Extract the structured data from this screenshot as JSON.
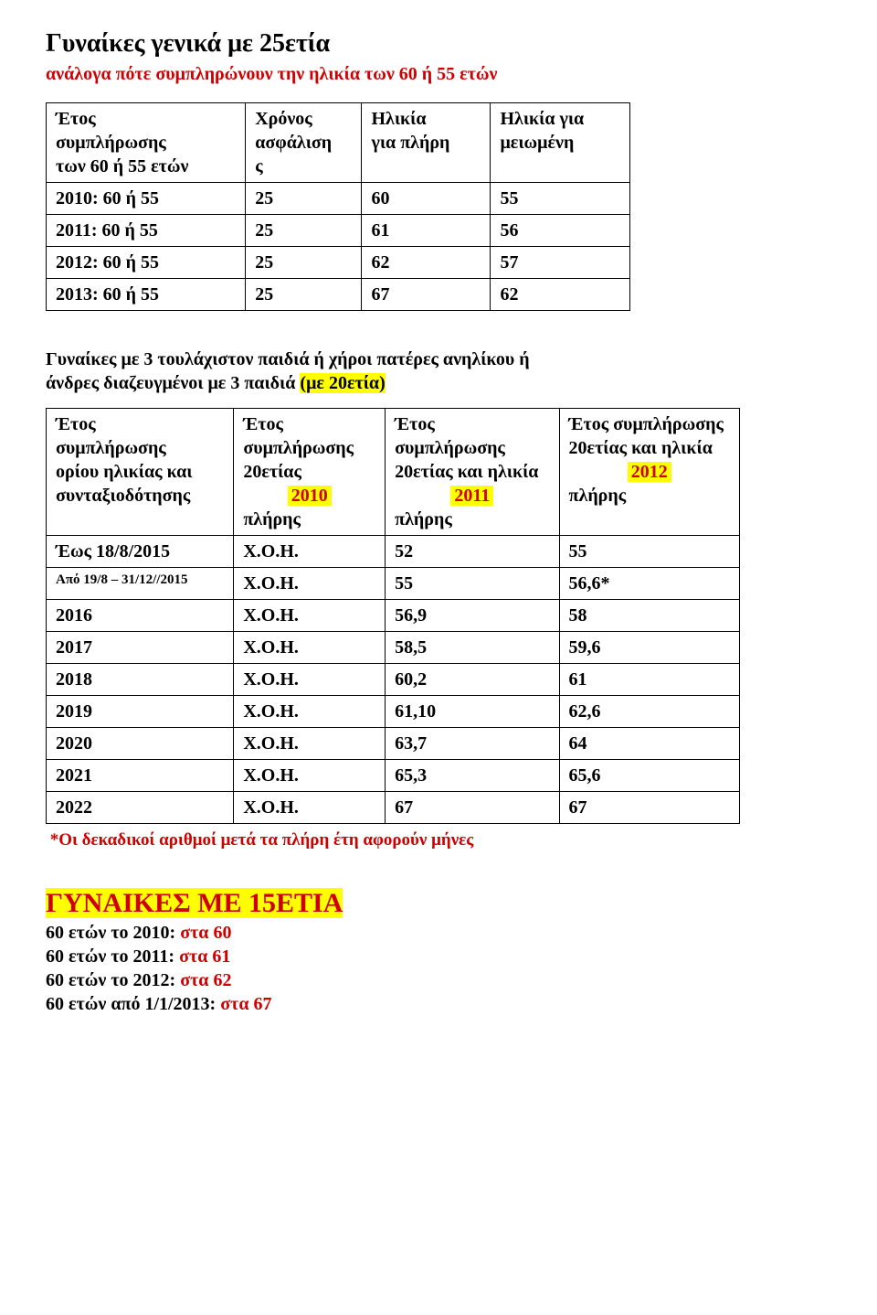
{
  "header": {
    "title": "Γυναίκες γενικά με 25ετία",
    "subtitle": "ανάλογα πότε συμπληρώνουν την ηλικία των 60 ή 55 ετών"
  },
  "table1": {
    "headers": {
      "c1a": "Έτος",
      "c1b": "συμπλήρωσης",
      "c1c": "των 60 ή 55 ετών",
      "c2a": "Χρόνος",
      "c2b": "ασφάλιση",
      "c2c": "ς",
      "c3a": "Ηλικία",
      "c3b": "για πλήρη",
      "c4a": "Ηλικία για",
      "c4b": "μειωμένη"
    },
    "rows": [
      {
        "year": "2010: 60 ή 55",
        "ins": "25",
        "full": "60",
        "red": "55"
      },
      {
        "year": "2011: 60 ή 55",
        "ins": "25",
        "full": "61",
        "red": "56"
      },
      {
        "year": "2012: 60 ή 55",
        "ins": "25",
        "full": "62",
        "red": "57"
      },
      {
        "year": "2013: 60 ή 55",
        "ins": "25",
        "full": "67",
        "red": "62"
      }
    ]
  },
  "midHeading": {
    "l1": "Γυναίκες με 3 τουλάχιστον παιδιά ή χήροι πατέρες ανηλίκου ή",
    "l2a": "άνδρες διαζευγμένοι με 3 παιδιά ",
    "l2b": "(με 20ετία)"
  },
  "table2": {
    "head": {
      "c1": {
        "l1": "Έτος",
        "l2": "συμπλήρωσης",
        "l3": " ορίου ηλικίας και",
        "l4": "συνταξιοδότησης"
      },
      "c2": {
        "l1": "Έτος",
        "l2": "συμπλήρωσης",
        "l3": "20ετίας",
        "year": "2010",
        "l5": "πλήρης"
      },
      "c3": {
        "l1": "Έτος",
        "l2": "συμπλήρωσης",
        "l3": "20ετίας και ηλικία",
        "year": "2011",
        "l5": "πλήρης"
      },
      "c4": {
        "l1": " Έτος  συμπλήρωσης",
        "l2": "20ετίας και ηλικία",
        "year": "2012",
        "l4": "πλήρης"
      }
    },
    "rows": [
      {
        "c1": "Έως 18/8/2015",
        "c2": "X.O.H.",
        "c3": "52",
        "c4": "55",
        "small": false
      },
      {
        "c1": "Από 19/8 – 31/12//2015",
        "c2": "X.O.H.",
        "c3": "55",
        "c4": "56,6*",
        "small": true
      },
      {
        "c1": "2016",
        "c2": "X.O.H.",
        "c3": "56,9",
        "c4": "58",
        "small": false
      },
      {
        "c1": "2017",
        "c2": "X.O.H.",
        "c3": "58,5",
        "c4": "59,6",
        "small": false
      },
      {
        "c1": "2018",
        "c2": "X.O.H.",
        "c3": "60,2",
        "c4": "61",
        "small": false
      },
      {
        "c1": "2019",
        "c2": "X.O.H.",
        "c3": "61,10",
        "c4": "62,6",
        "small": false
      },
      {
        "c1": "2020",
        "c2": "X.O.H.",
        "c3": "63,7",
        "c4": "64",
        "small": false
      },
      {
        "c1": "2021",
        "c2": "X.O.H.",
        "c3": "65,3",
        "c4": "65,6",
        "small": false
      },
      {
        "c1": "2022",
        "c2": "X.O.H.",
        "c3": "67",
        "c4": "67",
        "small": false
      }
    ]
  },
  "footnote": {
    "star": "*",
    "text": "Οι δεκαδικοί αριθμοί μετά τα πλήρη έτη αφορούν μήνες"
  },
  "bottom": {
    "title": "ΓΥΝΑΙΚΕΣ ΜΕ 15ΕΤΙΑ",
    "lines": [
      {
        "black": "60 ετών το 2010: ",
        "red": "στα 60"
      },
      {
        "black": "60 ετών το 2011: ",
        "red": "στα 61"
      },
      {
        "black": "60 ετών το 2012: ",
        "red": "στα 62"
      },
      {
        "black": "60 ετών από 1/1/2013: ",
        "red": "στα 67"
      }
    ]
  },
  "table2Widths": {
    "c1": "200",
    "c2": "155",
    "c3": "190",
    "c4": "200"
  }
}
